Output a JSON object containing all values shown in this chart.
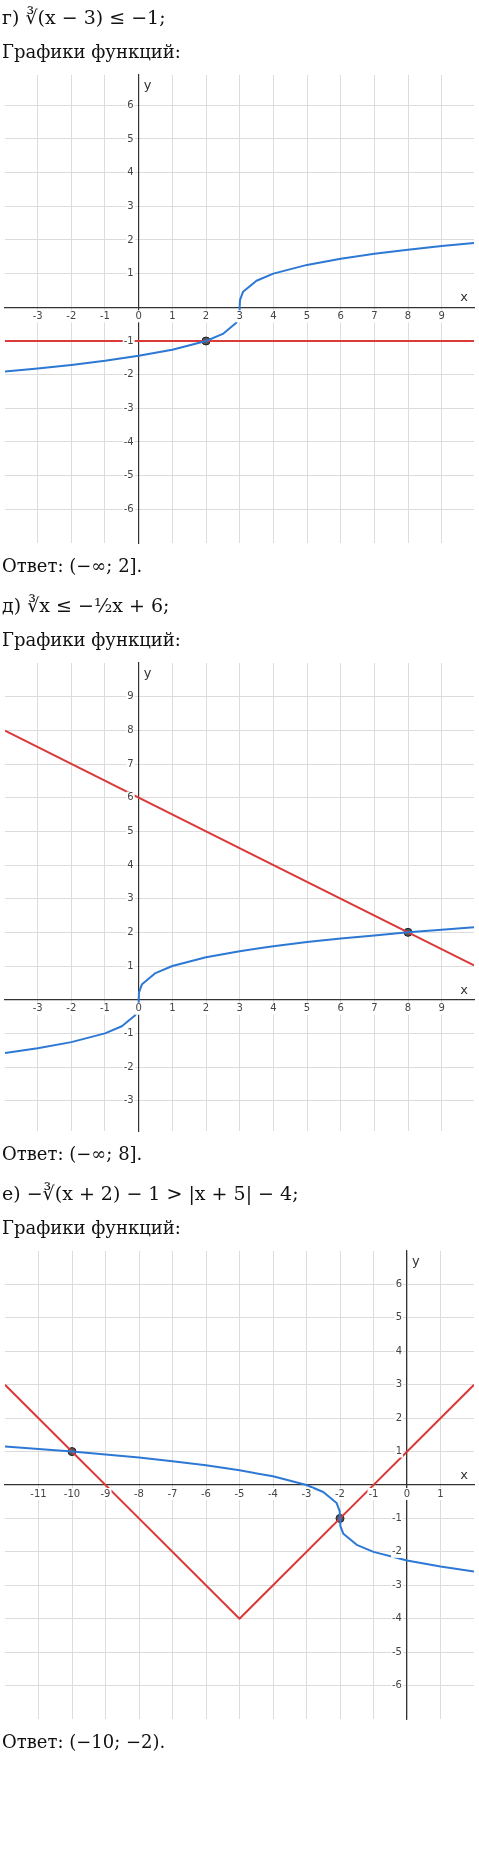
{
  "chart_data": [
    {
      "type": "line",
      "title": "г) ∛(x − 3) ≤ −1;",
      "subtitle": "Графики функций:",
      "xlabel": "x",
      "ylabel": "y",
      "annotations": [
        "Ответ: (−∞; 2]."
      ],
      "xlim": [
        -3.97,
        9.96
      ],
      "ylim": [
        -7,
        6.9
      ],
      "xticks": [
        -3,
        -2,
        -1,
        0,
        1,
        2,
        3,
        4,
        5,
        6,
        7,
        8,
        9
      ],
      "yticks": [
        -6,
        -5,
        -4,
        -3,
        -2,
        -1,
        1,
        2,
        3,
        4,
        5,
        6
      ],
      "grid": true,
      "legend": false,
      "series": [
        {
          "type": "line",
          "color": "#2d78d4",
          "marker": "none",
          "x": [
            -3.97,
            -3,
            -2,
            -1,
            0,
            1,
            2,
            2.5,
            2.9,
            2.99,
            3,
            3.01,
            3.1,
            3.5,
            4,
            5,
            6,
            7,
            8,
            9,
            9.96
          ],
          "values": [
            -1.91,
            -1.82,
            -1.71,
            -1.59,
            -1.44,
            -1.26,
            -1,
            -0.79,
            -0.46,
            -0.22,
            0,
            0.22,
            0.46,
            0.79,
            1,
            1.26,
            1.44,
            1.59,
            1.71,
            1.82,
            1.91
          ]
        },
        {
          "type": "line",
          "color": "#db3a3a",
          "marker": "none",
          "x": [
            -3.97,
            9.96
          ],
          "values": [
            -1,
            -1
          ]
        },
        {
          "type": "scatter",
          "color": "#555555",
          "marker": "circle",
          "x": [
            2
          ],
          "values": [
            -1
          ]
        }
      ]
    },
    {
      "type": "line",
      "title": "д) ∛x ≤ −½x + 6;",
      "subtitle": "Графики функций:",
      "xlabel": "x",
      "ylabel": "y",
      "annotations": [
        "Ответ: (−∞; 8]."
      ],
      "xlim": [
        -3.97,
        9.96
      ],
      "ylim": [
        -3.9,
        10
      ],
      "xticks": [
        -3,
        -2,
        -1,
        0,
        1,
        2,
        3,
        4,
        5,
        6,
        7,
        8,
        9
      ],
      "yticks": [
        -3,
        -2,
        -1,
        1,
        2,
        3,
        4,
        5,
        6,
        7,
        8,
        9
      ],
      "grid": true,
      "legend": false,
      "series": [
        {
          "type": "line",
          "color": "#2d78d4",
          "marker": "none",
          "x": [
            -3.97,
            -3,
            -2,
            -1,
            -0.5,
            -0.1,
            -0.01,
            0,
            0.01,
            0.1,
            0.5,
            1,
            2,
            3,
            4,
            5,
            6,
            7,
            8,
            9,
            9.96
          ],
          "values": [
            -1.58,
            -1.44,
            -1.26,
            -1,
            -0.79,
            -0.46,
            -0.22,
            0,
            0.22,
            0.46,
            0.79,
            1,
            1.26,
            1.44,
            1.59,
            1.71,
            1.82,
            1.91,
            2,
            2.08,
            2.15
          ]
        },
        {
          "type": "line",
          "color": "#db3a3a",
          "marker": "none",
          "x": [
            -3.97,
            9.96
          ],
          "values": [
            7.99,
            1.02
          ]
        },
        {
          "type": "scatter",
          "color": "#555555",
          "marker": "circle",
          "x": [
            8
          ],
          "values": [
            2
          ]
        }
      ]
    },
    {
      "type": "line",
      "title": "е) −∛(x + 2) − 1 > |x + 5| − 4;",
      "subtitle": "Графики функций:",
      "xlabel": "x",
      "ylabel": "y",
      "annotations": [
        "Ответ: (−10; −2)."
      ],
      "xlim": [
        -12,
        2
      ],
      "ylim": [
        -7,
        7
      ],
      "xticks": [
        -11,
        -10,
        -9,
        -8,
        -7,
        -6,
        -5,
        -4,
        -3,
        -2,
        -1,
        0,
        1
      ],
      "yticks": [
        -6,
        -5,
        -4,
        -3,
        -2,
        -1,
        1,
        2,
        3,
        4,
        5,
        6
      ],
      "grid": true,
      "legend": false,
      "series": [
        {
          "type": "line",
          "color": "#2d78d4",
          "marker": "none",
          "x": [
            -12,
            -11,
            -10,
            -9,
            -8,
            -7,
            -6,
            -5,
            -4,
            -3,
            -2.5,
            -2.1,
            -2.01,
            -2,
            -1.99,
            -1.9,
            -1.5,
            -1,
            0,
            1,
            2
          ],
          "values": [
            1.15,
            1.08,
            1,
            0.91,
            0.82,
            0.71,
            0.59,
            0.44,
            0.26,
            0,
            -0.21,
            -0.54,
            -0.78,
            -1,
            -1.22,
            -1.46,
            -1.79,
            -2,
            -2.26,
            -2.44,
            -2.59
          ]
        },
        {
          "type": "line",
          "color": "#db3a3a",
          "marker": "none",
          "x": [
            -12,
            -5,
            2
          ],
          "values": [
            3,
            -4,
            3
          ]
        },
        {
          "type": "scatter",
          "color": "#555555",
          "marker": "circle",
          "x": [
            -10,
            -2
          ],
          "values": [
            1,
            -1
          ]
        }
      ]
    }
  ]
}
